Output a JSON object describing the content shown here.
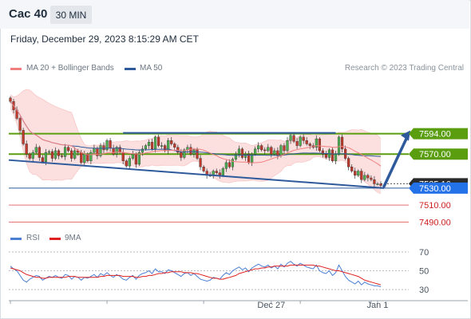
{
  "header": {
    "symbol": "Cac 40",
    "timeframe": "30 MIN",
    "datetime": "Friday, December 29, 2023 8:15:29 AM CET",
    "copyright": "Research © 2023 Trading Central"
  },
  "legend": {
    "ma20_label": "MA 20 + Bollinger Bands",
    "ma50_label": "MA 50",
    "rsi_label": "RSI",
    "rsi9ma_label": "9MA"
  },
  "colors": {
    "ma20": "#f08080",
    "ma50": "#2e5a9c",
    "bands_fill": "#fbd5d5",
    "candle_up": "#4caf50",
    "candle_down": "#c0392b",
    "resistance_green": "#5a9e10",
    "support_red": "#e57373",
    "trend_blue": "#2e5a9c",
    "current_label": "#2a2a2a",
    "target_label": "#2472e8",
    "rsi_line": "#4a7fd4",
    "rsi_ma": "#e02020"
  },
  "chart_data": [
    {
      "type": "candlestick",
      "title": "Cac 40",
      "timeframe": "30 MIN",
      "x_tick_labels": [
        "Dec 27",
        "Jan 1"
      ],
      "ylim": [
        7482,
        7665
      ],
      "close_series": [
        7632,
        7622,
        7612,
        7598,
        7582,
        7570,
        7565,
        7572,
        7578,
        7566,
        7561,
        7572,
        7573,
        7565,
        7574,
        7568,
        7567,
        7578,
        7574,
        7565,
        7574,
        7572,
        7560,
        7570,
        7562,
        7572,
        7577,
        7568,
        7580,
        7575,
        7586,
        7577,
        7570,
        7578,
        7572,
        7562,
        7556,
        7565,
        7570,
        7558,
        7572,
        7576,
        7580,
        7584,
        7576,
        7590,
        7580,
        7580,
        7574,
        7586,
        7582,
        7578,
        7572,
        7566,
        7575,
        7578,
        7570,
        7575,
        7565,
        7555,
        7550,
        7545,
        7545,
        7550,
        7548,
        7545,
        7553,
        7560,
        7555,
        7564,
        7570,
        7576,
        7566,
        7570,
        7560,
        7570,
        7576,
        7580,
        7575,
        7574,
        7578,
        7570,
        7574,
        7568,
        7580,
        7574,
        7586,
        7592,
        7585,
        7580,
        7590,
        7586,
        7582,
        7580,
        7578,
        7588,
        7574,
        7570,
        7566,
        7575,
        7562,
        7570,
        7590,
        7576,
        7565,
        7555,
        7550,
        7545,
        7550,
        7540,
        7545,
        7542,
        7540,
        7535,
        7535,
        7533
      ],
      "levels": [
        {
          "value": 7594.0,
          "label": "7594.00",
          "kind": "resistance"
        },
        {
          "value": 7570.0,
          "label": "7570.00",
          "kind": "resistance"
        },
        {
          "value": 7535.16,
          "label": "7535.16",
          "kind": "current"
        },
        {
          "value": 7530.0,
          "label": "7530.00",
          "kind": "pivot"
        },
        {
          "value": 7510.0,
          "label": "7510.00",
          "kind": "support"
        },
        {
          "value": 7490.0,
          "label": "7490.00",
          "kind": "support"
        }
      ],
      "trend_channel": {
        "lower": [
          {
            "bar": 0,
            "value": 7563
          },
          {
            "bar": 116,
            "value": 7530
          }
        ],
        "upper": [
          {
            "bar": 35,
            "value": 7595
          },
          {
            "bar": 101,
            "value": 7595
          }
        ]
      },
      "target_arrow": {
        "from": 7532,
        "to": 7594
      }
    },
    {
      "type": "line",
      "title": "RSI",
      "ylim": [
        25,
        75
      ],
      "y_ticks": [
        70,
        50,
        30
      ],
      "series": [
        {
          "name": "RSI",
          "values": [
            55,
            52,
            50,
            45,
            40,
            38,
            41,
            43,
            45,
            44,
            40,
            42,
            44,
            43,
            45,
            43,
            42,
            46,
            45,
            41,
            44,
            43,
            40,
            43,
            42,
            44,
            46,
            43,
            47,
            45,
            48,
            45,
            43,
            46,
            44,
            41,
            40,
            43,
            45,
            41,
            45,
            47,
            48,
            50,
            47,
            52,
            49,
            49,
            47,
            51,
            50,
            48,
            46,
            44,
            47,
            48,
            45,
            47,
            44,
            41,
            40,
            39,
            40,
            43,
            42,
            41,
            45,
            48,
            46,
            50,
            52,
            54,
            51,
            53,
            49,
            53,
            55,
            57,
            55,
            54,
            56,
            53,
            55,
            52,
            57,
            54,
            58,
            60,
            57,
            55,
            58,
            56,
            54,
            53,
            52,
            56,
            50,
            48,
            47,
            50,
            45,
            48,
            56,
            50,
            44,
            40,
            38,
            36,
            39,
            35,
            38,
            36,
            35,
            34,
            34,
            33
          ]
        },
        {
          "name": "9MA",
          "values": [
            53,
            52,
            51,
            50,
            48,
            46,
            45,
            44,
            43,
            43,
            42,
            42,
            43,
            43,
            43,
            43,
            43,
            43,
            44,
            44,
            44,
            43,
            43,
            43,
            43,
            43,
            43,
            43,
            44,
            44,
            45,
            45,
            45,
            45,
            45,
            44,
            44,
            44,
            44,
            43,
            43,
            44,
            44,
            45,
            45,
            46,
            47,
            47,
            48,
            48,
            49,
            49,
            49,
            49,
            48,
            48,
            48,
            47,
            47,
            46,
            45,
            44,
            43,
            42,
            42,
            41,
            41,
            42,
            43,
            44,
            45,
            47,
            48,
            49,
            50,
            51,
            52,
            52,
            53,
            53,
            54,
            54,
            55,
            55,
            55,
            55,
            55,
            56,
            56,
            56,
            56,
            56,
            56,
            56,
            56,
            55,
            55,
            54,
            53,
            52,
            51,
            50,
            50,
            49,
            48,
            47,
            46,
            45,
            44,
            42,
            40,
            39,
            38,
            37,
            36,
            35
          ]
        }
      ]
    }
  ]
}
